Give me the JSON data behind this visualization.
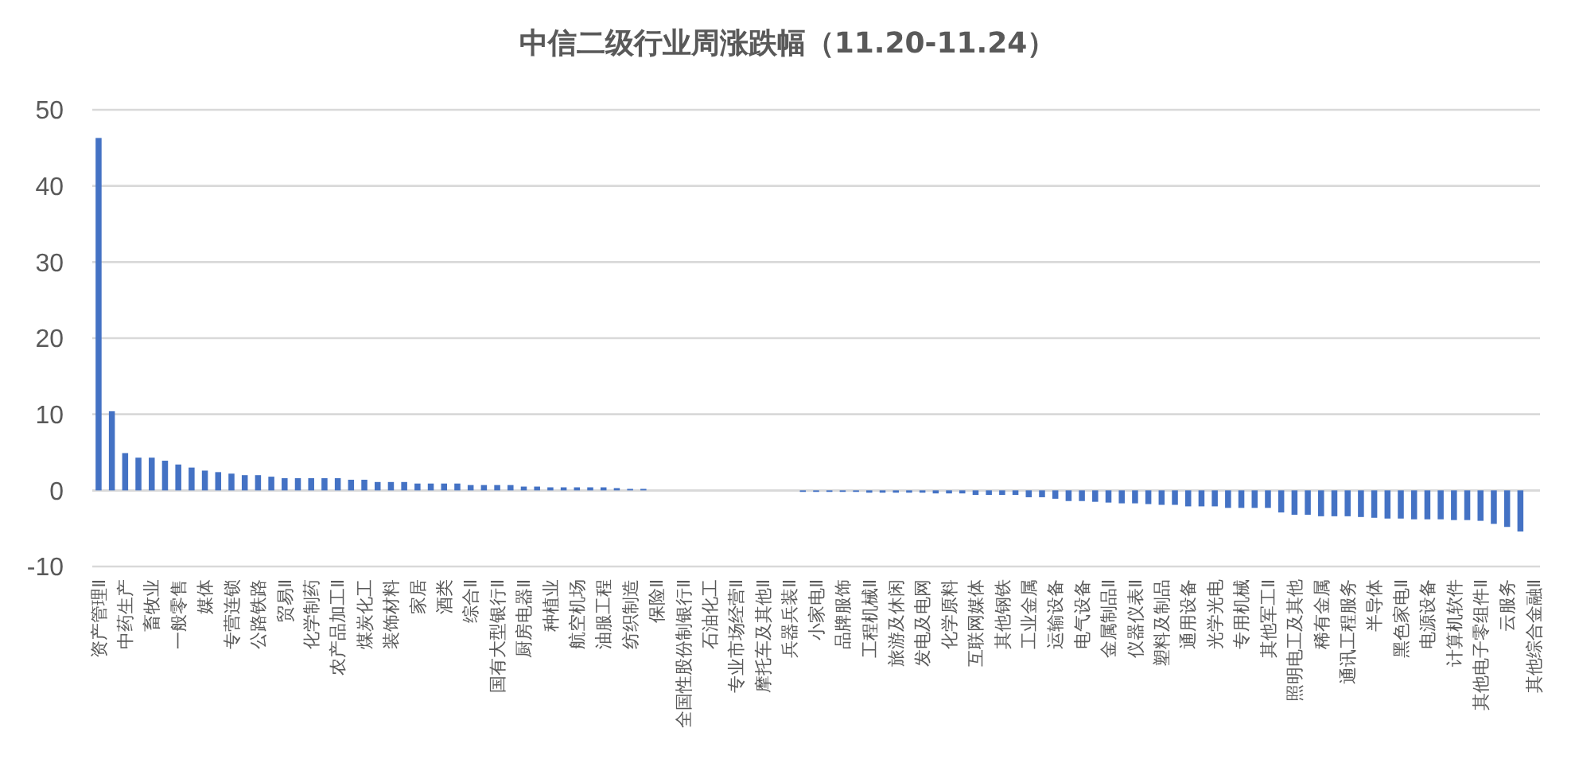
{
  "chart_data": {
    "type": "bar",
    "title": "中信二级行业周涨跌幅（11.20-11.24）",
    "categories": [
      "资产管理Ⅱ",
      null,
      "中药生产",
      null,
      "畜牧业",
      null,
      "一般零售",
      null,
      "媒体",
      null,
      "专营连锁",
      null,
      "公路铁路",
      null,
      "贸易Ⅱ",
      null,
      "化学制药",
      null,
      "农产品加工Ⅱ",
      null,
      "煤炭化工",
      null,
      "装饰材料",
      null,
      "家居",
      null,
      "酒类",
      null,
      "综合Ⅱ",
      null,
      "国有大型银行Ⅱ",
      null,
      "厨房电器Ⅱ",
      null,
      "种植业",
      null,
      "航空机场",
      null,
      "油服工程",
      null,
      "纺织制造",
      null,
      "保险Ⅱ",
      null,
      "全国性股份制银行Ⅱ",
      null,
      "石油化工",
      null,
      "专业市场经营Ⅱ",
      null,
      "摩托车及其他Ⅱ",
      null,
      "兵器兵装Ⅱ",
      null,
      "小家电Ⅱ",
      null,
      "品牌服饰",
      null,
      "工程机械Ⅱ",
      null,
      "旅游及休闲",
      null,
      "发电及电网",
      null,
      "化学原料",
      null,
      "互联网媒体",
      null,
      "其他钢铁",
      null,
      "工业金属",
      null,
      "运输设备",
      null,
      "电气设备",
      null,
      "金属制品Ⅱ",
      null,
      "仪器仪表Ⅱ",
      null,
      "塑料及制品",
      null,
      "通用设备",
      null,
      "光学光电",
      null,
      "专用机械",
      null,
      "其他军工Ⅱ",
      null,
      "照明电工及其他",
      null,
      "稀有金属",
      null,
      "通讯工程服务",
      null,
      "半导体",
      null,
      "黑色家电Ⅱ",
      null,
      "电源设备",
      null,
      "计算机软件",
      null,
      "其他电子零组件Ⅱ",
      null,
      "云服务",
      null,
      "其他综合金融Ⅱ"
    ],
    "values": [
      46.3,
      10.4,
      4.9,
      4.3,
      4.3,
      3.9,
      3.4,
      3.0,
      2.6,
      2.4,
      2.2,
      2.0,
      2.0,
      1.8,
      1.6,
      1.6,
      1.6,
      1.6,
      1.6,
      1.4,
      1.4,
      1.1,
      1.1,
      1.1,
      0.9,
      0.9,
      0.9,
      0.9,
      0.7,
      0.7,
      0.7,
      0.7,
      0.5,
      0.5,
      0.4,
      0.4,
      0.4,
      0.4,
      0.4,
      0.3,
      0.2,
      0.2,
      0,
      0,
      0,
      0,
      0,
      0,
      0,
      0,
      0,
      0,
      0,
      -0.2,
      -0.2,
      -0.2,
      -0.2,
      -0.2,
      -0.3,
      -0.3,
      -0.3,
      -0.3,
      -0.3,
      -0.4,
      -0.4,
      -0.4,
      -0.6,
      -0.6,
      -0.6,
      -0.6,
      -0.9,
      -0.9,
      -1.1,
      -1.4,
      -1.4,
      -1.5,
      -1.6,
      -1.7,
      -1.7,
      -1.8,
      -1.9,
      -1.9,
      -2.1,
      -2.1,
      -2.1,
      -2.3,
      -2.3,
      -2.3,
      -2.3,
      -2.9,
      -3.2,
      -3.2,
      -3.4,
      -3.4,
      -3.4,
      -3.5,
      -3.6,
      -3.7,
      -3.7,
      -3.8,
      -3.8,
      -3.8,
      -3.9,
      -3.9,
      -4.0,
      -4.4,
      -4.8,
      -5.4,
      0
    ],
    "color": "#4472c4",
    "ylim": [
      -10,
      50
    ],
    "yticks": [
      -10,
      0,
      10,
      20,
      30,
      40,
      50
    ],
    "grid": "y"
  }
}
